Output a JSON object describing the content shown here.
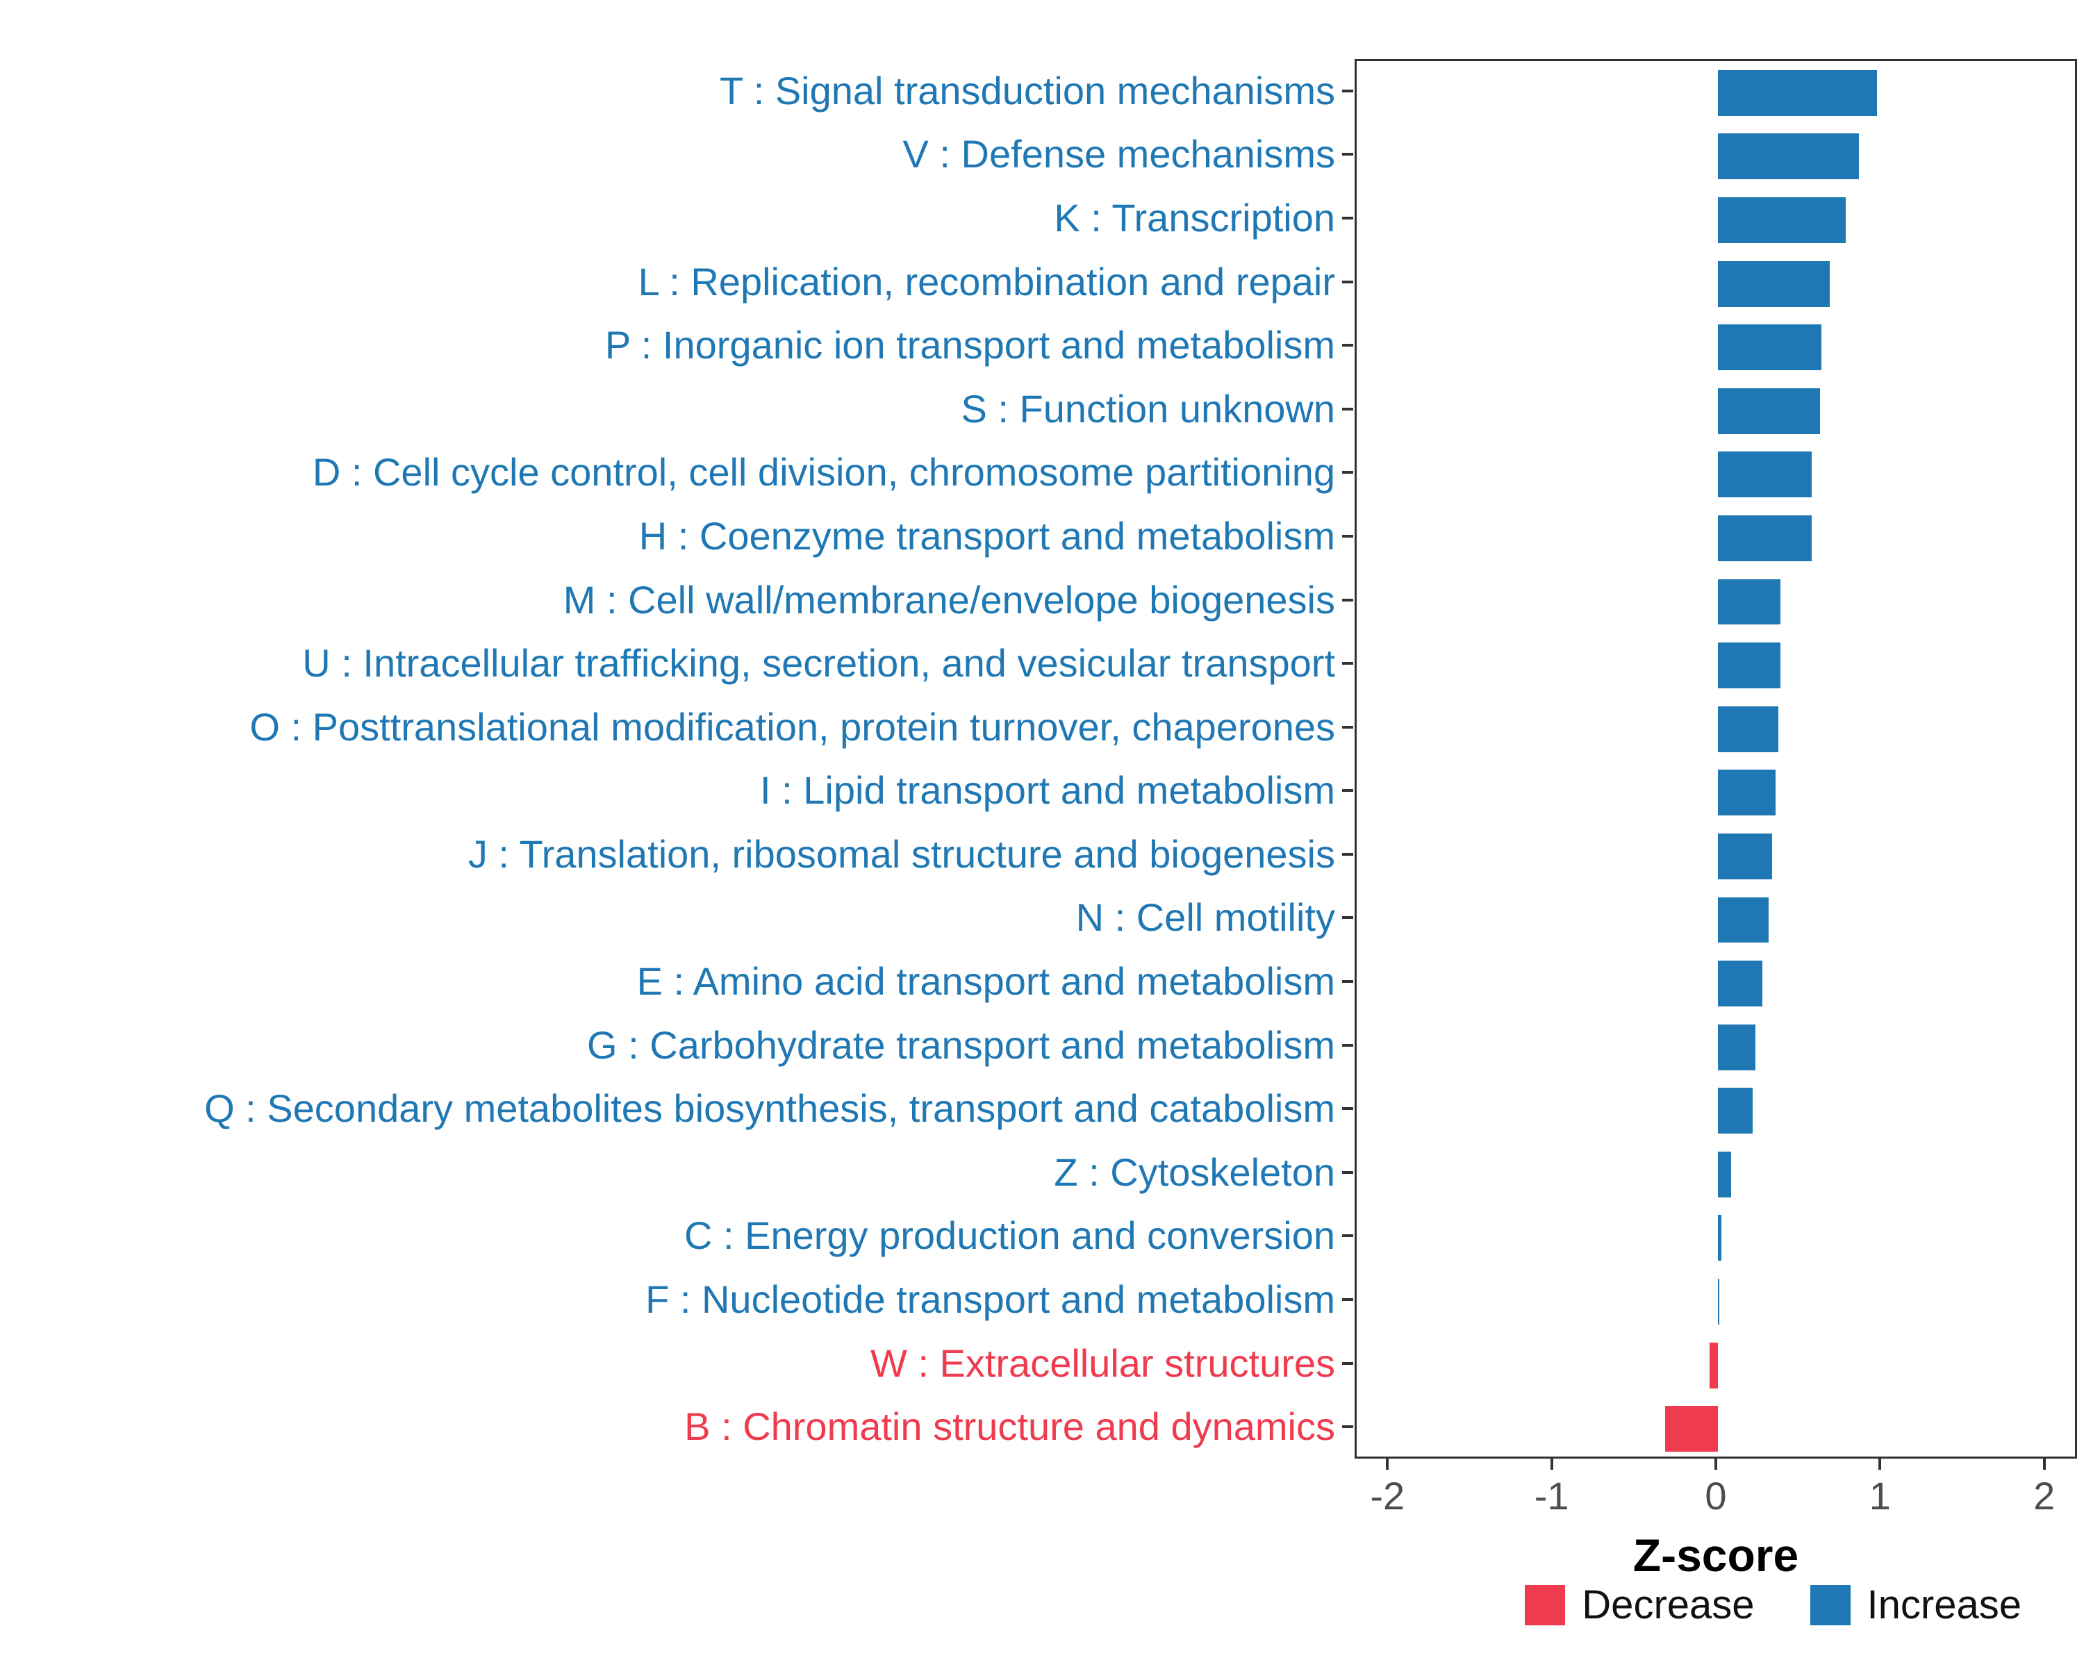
{
  "colors": {
    "increase": "#1f78b4",
    "decrease": "#ee3b4d",
    "axis_text": "#4d4d4d",
    "panel_border": "#333333"
  },
  "legend": {
    "decrease_label": "Decrease",
    "increase_label": "Increase"
  },
  "chart_data": {
    "type": "bar",
    "orientation": "horizontal",
    "title": "",
    "xlabel": "Z-score",
    "ylabel": "",
    "xlim": [
      -2.2,
      2.2
    ],
    "x_ticks": [
      {
        "value": -2,
        "label": "-2"
      },
      {
        "value": -1,
        "label": "-1"
      },
      {
        "value": 0,
        "label": "0"
      },
      {
        "value": 1,
        "label": "1"
      },
      {
        "value": 2,
        "label": "2"
      }
    ],
    "grid": false,
    "legend_position": "bottom-right",
    "items": [
      {
        "label": "T : Signal transduction mechanisms",
        "value": 0.97,
        "direction": "increase"
      },
      {
        "label": "V : Defense mechanisms",
        "value": 0.86,
        "direction": "increase"
      },
      {
        "label": "K : Transcription",
        "value": 0.78,
        "direction": "increase"
      },
      {
        "label": "L : Replication, recombination and repair",
        "value": 0.68,
        "direction": "increase"
      },
      {
        "label": "P : Inorganic ion transport and metabolism",
        "value": 0.63,
        "direction": "increase"
      },
      {
        "label": "S : Function unknown",
        "value": 0.62,
        "direction": "increase"
      },
      {
        "label": "D : Cell cycle control, cell division, chromosome partitioning",
        "value": 0.57,
        "direction": "increase"
      },
      {
        "label": "H : Coenzyme transport and metabolism",
        "value": 0.57,
        "direction": "increase"
      },
      {
        "label": "M : Cell wall/membrane/envelope biogenesis",
        "value": 0.38,
        "direction": "increase"
      },
      {
        "label": "U : Intracellular trafficking, secretion, and vesicular transport",
        "value": 0.38,
        "direction": "increase"
      },
      {
        "label": "O : Posttranslational modification, protein turnover, chaperones",
        "value": 0.37,
        "direction": "increase"
      },
      {
        "label": "I : Lipid transport and metabolism",
        "value": 0.35,
        "direction": "increase"
      },
      {
        "label": "J : Translation, ribosomal structure and biogenesis",
        "value": 0.33,
        "direction": "increase"
      },
      {
        "label": "N : Cell motility",
        "value": 0.31,
        "direction": "increase"
      },
      {
        "label": "E : Amino acid transport and metabolism",
        "value": 0.27,
        "direction": "increase"
      },
      {
        "label": "G : Carbohydrate transport and metabolism",
        "value": 0.23,
        "direction": "increase"
      },
      {
        "label": "Q : Secondary metabolites biosynthesis, transport and catabolism",
        "value": 0.21,
        "direction": "increase"
      },
      {
        "label": "Z : Cytoskeleton",
        "value": 0.08,
        "direction": "increase"
      },
      {
        "label": "C : Energy production and conversion",
        "value": 0.02,
        "direction": "increase"
      },
      {
        "label": "F : Nucleotide transport and metabolism",
        "value": 0.01,
        "direction": "increase"
      },
      {
        "label": "W : Extracellular structures",
        "value": -0.05,
        "direction": "decrease"
      },
      {
        "label": "B : Chromatin structure and dynamics",
        "value": -0.32,
        "direction": "decrease"
      }
    ]
  }
}
